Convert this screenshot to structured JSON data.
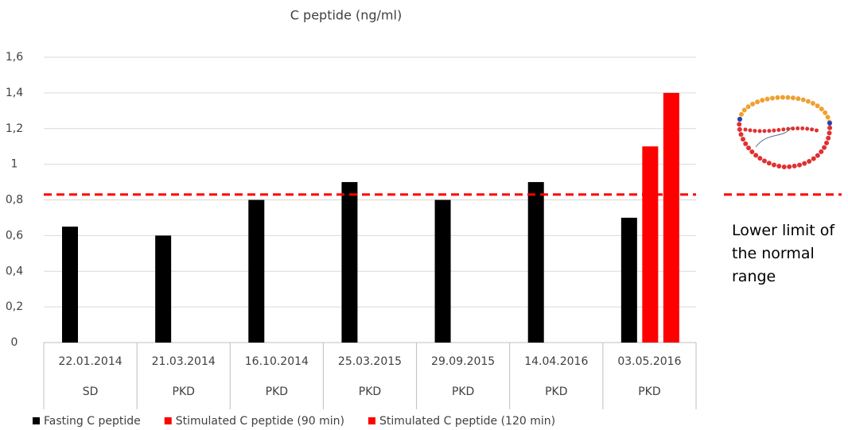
{
  "chart_data": {
    "type": "bar",
    "title": "C peptide  (ng/ml)",
    "categories": [
      "22.01.2014",
      "21.03.2014",
      "16.10.2014",
      "25.03.2015",
      "29.09.2015",
      "14.04.2016",
      "03.05.2016"
    ],
    "subcategories": [
      "SD",
      "PKD",
      "PKD",
      "PKD",
      "PKD",
      "PKD",
      "PKD"
    ],
    "series": [
      {
        "name": "Fasting C peptide",
        "color": "#000000",
        "values": [
          0.65,
          0.6,
          0.8,
          0.9,
          0.8,
          0.9,
          0.7
        ]
      },
      {
        "name": "Stimulated C peptide (90 min)",
        "color": "#ff0000",
        "values": [
          null,
          null,
          null,
          null,
          null,
          null,
          1.1
        ]
      },
      {
        "name": "Stimulated C peptide (120 min)",
        "color": "#ff0000",
        "values": [
          null,
          null,
          null,
          null,
          null,
          null,
          1.4
        ]
      }
    ],
    "ylim": [
      0,
      1.6
    ],
    "yticks": [
      0,
      {
        "value": 0.2,
        "label": "0,2"
      },
      {
        "value": 0.4,
        "label": "0,4"
      },
      {
        "value": 0.6,
        "label": "0,6"
      },
      {
        "value": 0.8,
        "label": "0,8"
      },
      1,
      {
        "value": 1.2,
        "label": "1,2"
      },
      {
        "value": 1.4,
        "label": "1,4"
      },
      {
        "value": 1.6,
        "label": "1,6"
      }
    ],
    "grid": true,
    "reference_line": {
      "value": 0.83,
      "color": "#ff0000",
      "label": "Lower limit of the normal range"
    }
  }
}
